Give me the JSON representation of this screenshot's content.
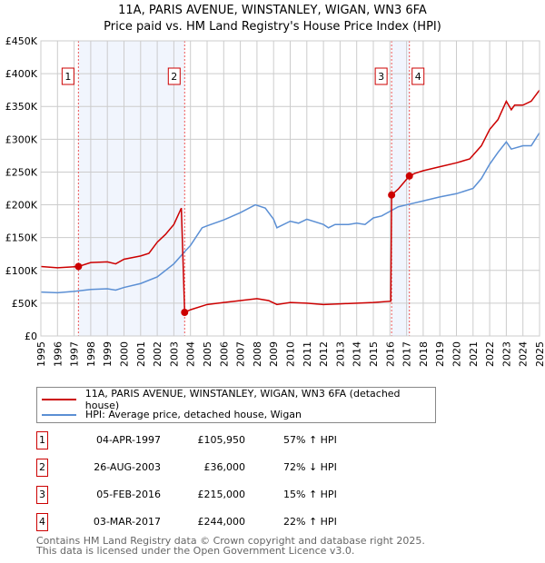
{
  "chart_data": {
    "type": "line",
    "title": "11A, PARIS AVENUE, WINSTANLEY, WIGAN, WN3 6FA",
    "subtitle": "Price paid vs. HM Land Registry's House Price Index (HPI)",
    "xlim": [
      1995,
      2025
    ],
    "ylim": [
      0,
      450000
    ],
    "x_ticks": [
      "1995",
      "1996",
      "1997",
      "1998",
      "1999",
      "2000",
      "2001",
      "2002",
      "2003",
      "2004",
      "2005",
      "2006",
      "2007",
      "2008",
      "2009",
      "2010",
      "2011",
      "2012",
      "2013",
      "2014",
      "2015",
      "2016",
      "2017",
      "2018",
      "2019",
      "2020",
      "2021",
      "2022",
      "2023",
      "2024",
      "2025"
    ],
    "y_ticks": [
      {
        "v": 0,
        "label": "£0"
      },
      {
        "v": 50000,
        "label": "£50K"
      },
      {
        "v": 100000,
        "label": "£100K"
      },
      {
        "v": 150000,
        "label": "£150K"
      },
      {
        "v": 200000,
        "label": "£200K"
      },
      {
        "v": 250000,
        "label": "£250K"
      },
      {
        "v": 300000,
        "label": "£300K"
      },
      {
        "v": 350000,
        "label": "£350K"
      },
      {
        "v": 400000,
        "label": "£400K"
      },
      {
        "v": 450000,
        "label": "£450K"
      }
    ],
    "grid": true,
    "series": [
      {
        "name": "11A, PARIS AVENUE, WINSTANLEY, WIGAN, WN3 6FA (detached house)",
        "color": "#cc0000",
        "points": [
          [
            1995,
            106000
          ],
          [
            1996,
            104000
          ],
          [
            1997.26,
            105950
          ],
          [
            1998,
            112000
          ],
          [
            1999,
            113000
          ],
          [
            1999.5,
            110000
          ],
          [
            2000,
            117000
          ],
          [
            2001,
            122000
          ],
          [
            2001.5,
            126000
          ],
          [
            2002,
            143000
          ],
          [
            2002.5,
            155000
          ],
          [
            2003,
            170000
          ],
          [
            2003.45,
            195000
          ],
          [
            2003.65,
            36000
          ],
          [
            2004,
            40000
          ],
          [
            2005,
            48000
          ],
          [
            2006,
            51000
          ],
          [
            2007,
            54000
          ],
          [
            2008,
            57000
          ],
          [
            2008.7,
            54000
          ],
          [
            2009.2,
            48000
          ],
          [
            2010,
            51000
          ],
          [
            2011,
            50000
          ],
          [
            2012,
            48000
          ],
          [
            2013,
            49000
          ],
          [
            2014,
            50000
          ],
          [
            2015,
            51000
          ],
          [
            2016.05,
            53000
          ],
          [
            2016.1,
            215000
          ],
          [
            2016.5,
            224000
          ],
          [
            2017.17,
            244000
          ],
          [
            2017.5,
            248000
          ],
          [
            2018,
            252000
          ],
          [
            2019,
            258000
          ],
          [
            2020,
            264000
          ],
          [
            2020.8,
            270000
          ],
          [
            2021.5,
            290000
          ],
          [
            2022,
            315000
          ],
          [
            2022.5,
            330000
          ],
          [
            2023,
            358000
          ],
          [
            2023.3,
            345000
          ],
          [
            2023.5,
            352000
          ],
          [
            2024,
            352000
          ],
          [
            2024.5,
            358000
          ],
          [
            2025,
            375000
          ]
        ]
      },
      {
        "name": "HPI: Average price, detached house, Wigan",
        "color": "#5b8fd4",
        "points": [
          [
            1995,
            67000
          ],
          [
            1996,
            66000
          ],
          [
            1997,
            68000
          ],
          [
            1998,
            71000
          ],
          [
            1999,
            72000
          ],
          [
            1999.5,
            70000
          ],
          [
            2000,
            74000
          ],
          [
            2001,
            80000
          ],
          [
            2002,
            90000
          ],
          [
            2003,
            110000
          ],
          [
            2003.7,
            130000
          ],
          [
            2004,
            138000
          ],
          [
            2004.7,
            165000
          ],
          [
            2005,
            168000
          ],
          [
            2006,
            177000
          ],
          [
            2007,
            188000
          ],
          [
            2007.9,
            200000
          ],
          [
            2008.5,
            195000
          ],
          [
            2009,
            178000
          ],
          [
            2009.2,
            165000
          ],
          [
            2010,
            175000
          ],
          [
            2010.5,
            172000
          ],
          [
            2011,
            178000
          ],
          [
            2012,
            170000
          ],
          [
            2012.3,
            165000
          ],
          [
            2012.7,
            170000
          ],
          [
            2013.5,
            170000
          ],
          [
            2014,
            172000
          ],
          [
            2014.5,
            170000
          ],
          [
            2015,
            180000
          ],
          [
            2015.5,
            183000
          ],
          [
            2016,
            190000
          ],
          [
            2016.5,
            197000
          ],
          [
            2017,
            200000
          ],
          [
            2018,
            206000
          ],
          [
            2019,
            212000
          ],
          [
            2020,
            217000
          ],
          [
            2021,
            225000
          ],
          [
            2021.5,
            240000
          ],
          [
            2022,
            262000
          ],
          [
            2022.5,
            280000
          ],
          [
            2023,
            296000
          ],
          [
            2023.3,
            285000
          ],
          [
            2024,
            290000
          ],
          [
            2024.5,
            290000
          ],
          [
            2025,
            310000
          ]
        ]
      }
    ],
    "sales": [
      {
        "id": "1",
        "x": 1997.26,
        "y": 105950
      },
      {
        "id": "2",
        "x": 2003.65,
        "y": 36000
      },
      {
        "id": "3",
        "x": 2016.1,
        "y": 215000
      },
      {
        "id": "4",
        "x": 2017.17,
        "y": 244000
      }
    ],
    "shaded": [
      [
        1997.26,
        2003.65
      ],
      [
        2016.1,
        2017.17
      ]
    ]
  },
  "transactions": [
    {
      "id": "1",
      "date": "04-APR-1997",
      "price": "£105,950",
      "hpi": "57% ↑ HPI"
    },
    {
      "id": "2",
      "date": "26-AUG-2003",
      "price": "£36,000",
      "hpi": "72% ↓ HPI"
    },
    {
      "id": "3",
      "date": "05-FEB-2016",
      "price": "£215,000",
      "hpi": "15% ↑ HPI"
    },
    {
      "id": "4",
      "date": "03-MAR-2017",
      "price": "£244,000",
      "hpi": "22% ↑ HPI"
    }
  ],
  "footer": {
    "line1": "Contains HM Land Registry data © Crown copyright and database right 2025.",
    "line2": "This data is licensed under the Open Government Licence v3.0."
  }
}
